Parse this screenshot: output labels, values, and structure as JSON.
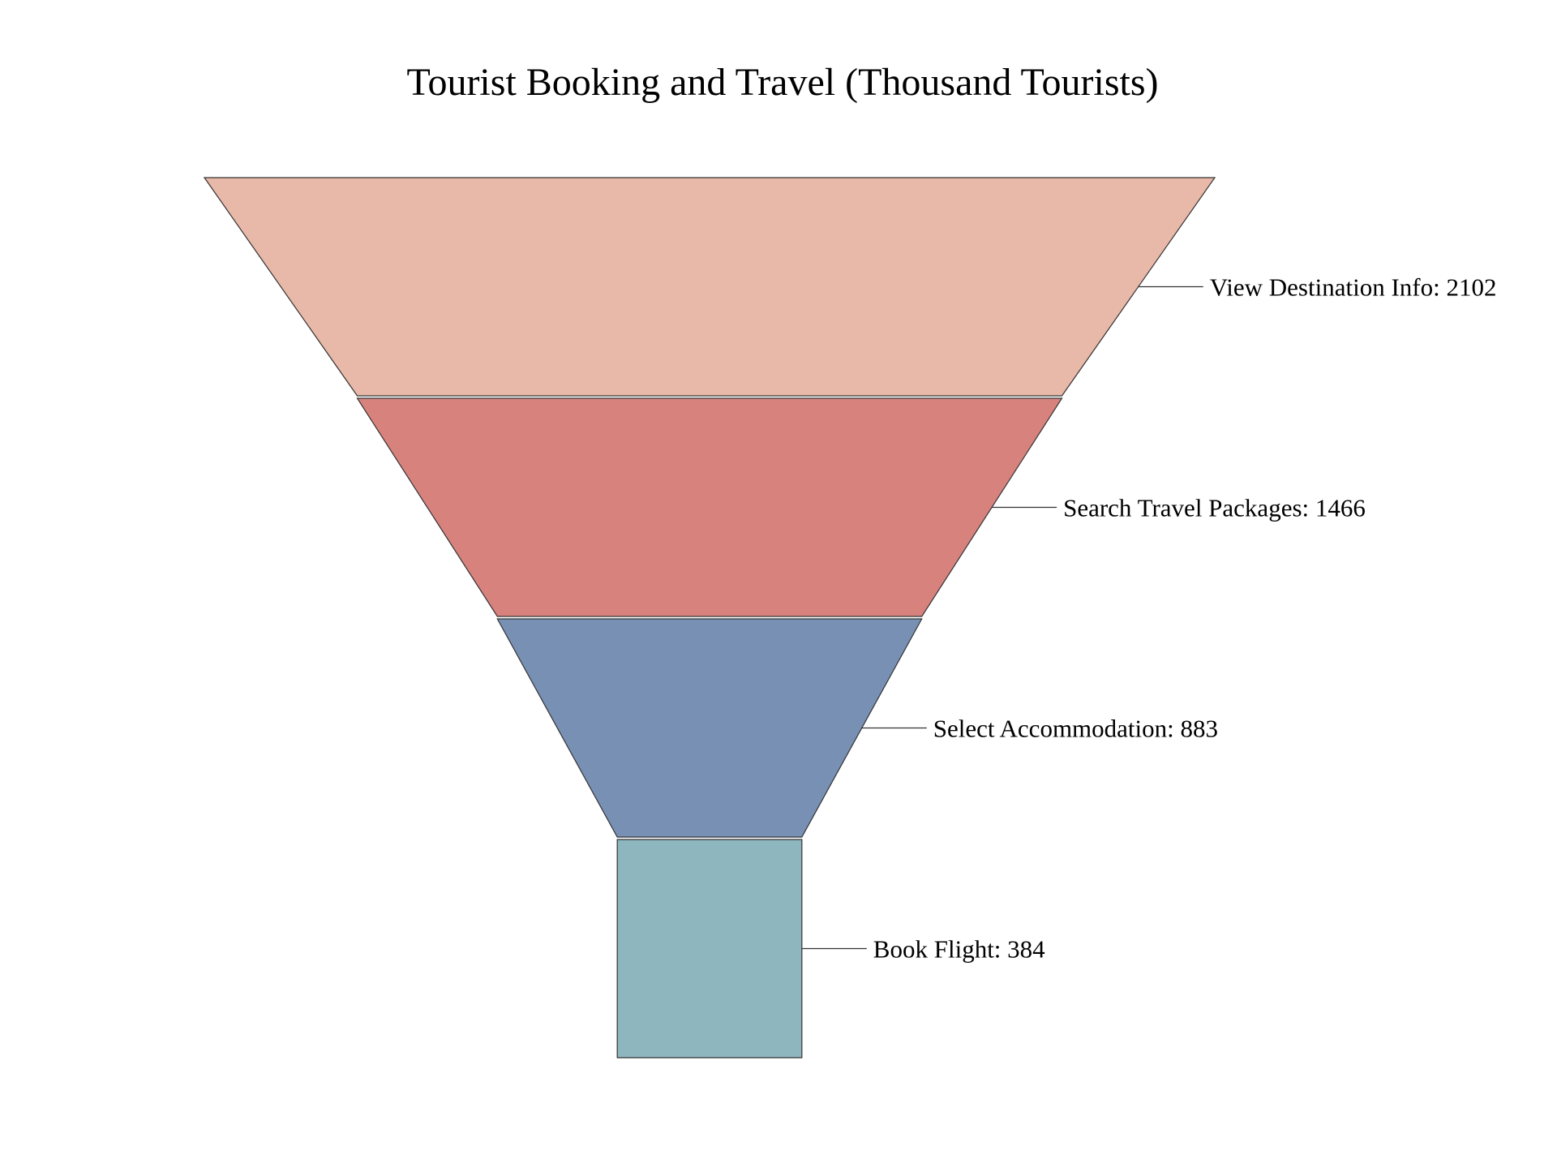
{
  "chart_data": {
    "type": "funnel",
    "title": "Tourist Booking and Travel (Thousand Tourists)",
    "stages": [
      {
        "name": "View Destination Info",
        "value": 2102,
        "color": "#e8b8a8"
      },
      {
        "name": "Search Travel Packages",
        "value": 1466,
        "color": "#d8827e"
      },
      {
        "name": "Select Accommodation",
        "value": 883,
        "color": "#7890b4"
      },
      {
        "name": "Book Flight",
        "value": 384,
        "color": "#8eb6be"
      }
    ]
  }
}
